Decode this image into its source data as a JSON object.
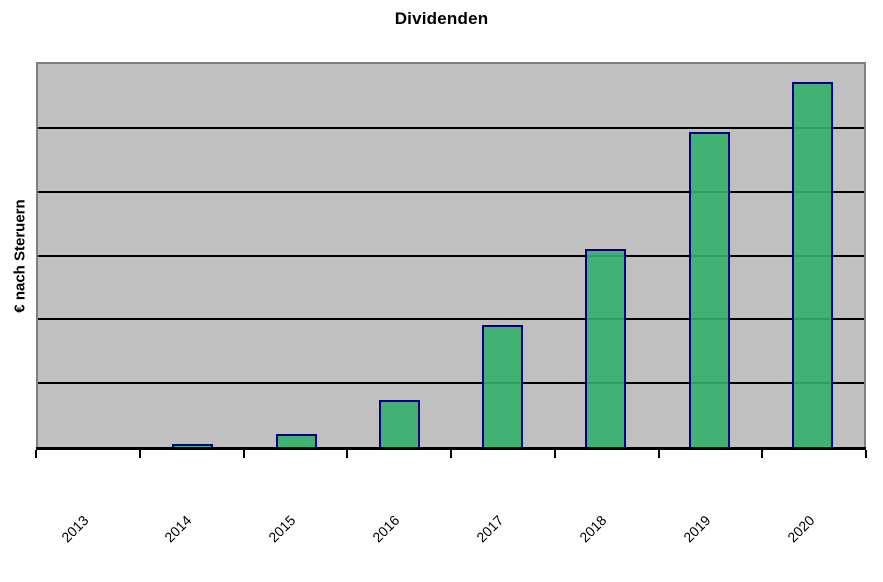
{
  "chart_data": {
    "type": "bar",
    "title": "Dividenden",
    "xlabel": "",
    "ylabel": "€ nach Steruern",
    "categories": [
      "2013",
      "2014",
      "2015",
      "2016",
      "2017",
      "2018",
      "2019",
      "2020"
    ],
    "series": [
      {
        "name": "Dividenden",
        "values": [
          0,
          0.05,
          0.21,
          0.74,
          1.91,
          3.1,
          4.93,
          5.72
        ]
      }
    ],
    "value_scale_note": "no numeric y-axis tick labels visible; values estimated in horizontal-gridline units",
    "ylim": [
      0,
      6
    ],
    "grid": {
      "horizontal": true,
      "intervals": 6,
      "color": "#000000"
    },
    "legend": "none",
    "colors": {
      "plot_background": "#C0C0C0",
      "plot_border": "#808080",
      "bar_fill": "#33B06A",
      "bar_border": "#000080",
      "axis": "#000000",
      "text": "#000000"
    }
  }
}
